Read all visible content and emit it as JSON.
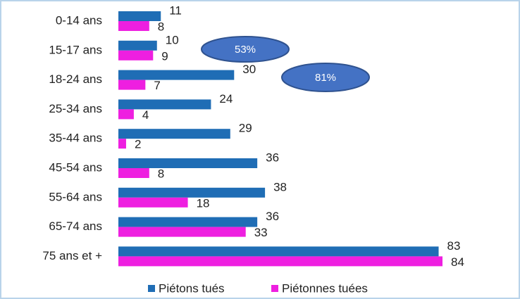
{
  "chart_data": {
    "type": "bar",
    "orientation": "horizontal",
    "categories": [
      "0-14 ans",
      "15-17 ans",
      "18-24 ans",
      "25-34 ans",
      "35-44 ans",
      "45-54 ans",
      "55-64 ans",
      "65-74 ans",
      "75 ans et +"
    ],
    "series": [
      {
        "name": "Piétons tués",
        "color": "#1f6db5",
        "values": [
          11,
          10,
          30,
          24,
          29,
          36,
          38,
          36,
          83
        ]
      },
      {
        "name": "Piétonnes tuées",
        "color": "#ee1fe0",
        "values": [
          8,
          9,
          7,
          4,
          2,
          8,
          18,
          33,
          84
        ]
      }
    ],
    "annotations": [
      "53%",
      "81%"
    ],
    "legend": "bottom"
  }
}
